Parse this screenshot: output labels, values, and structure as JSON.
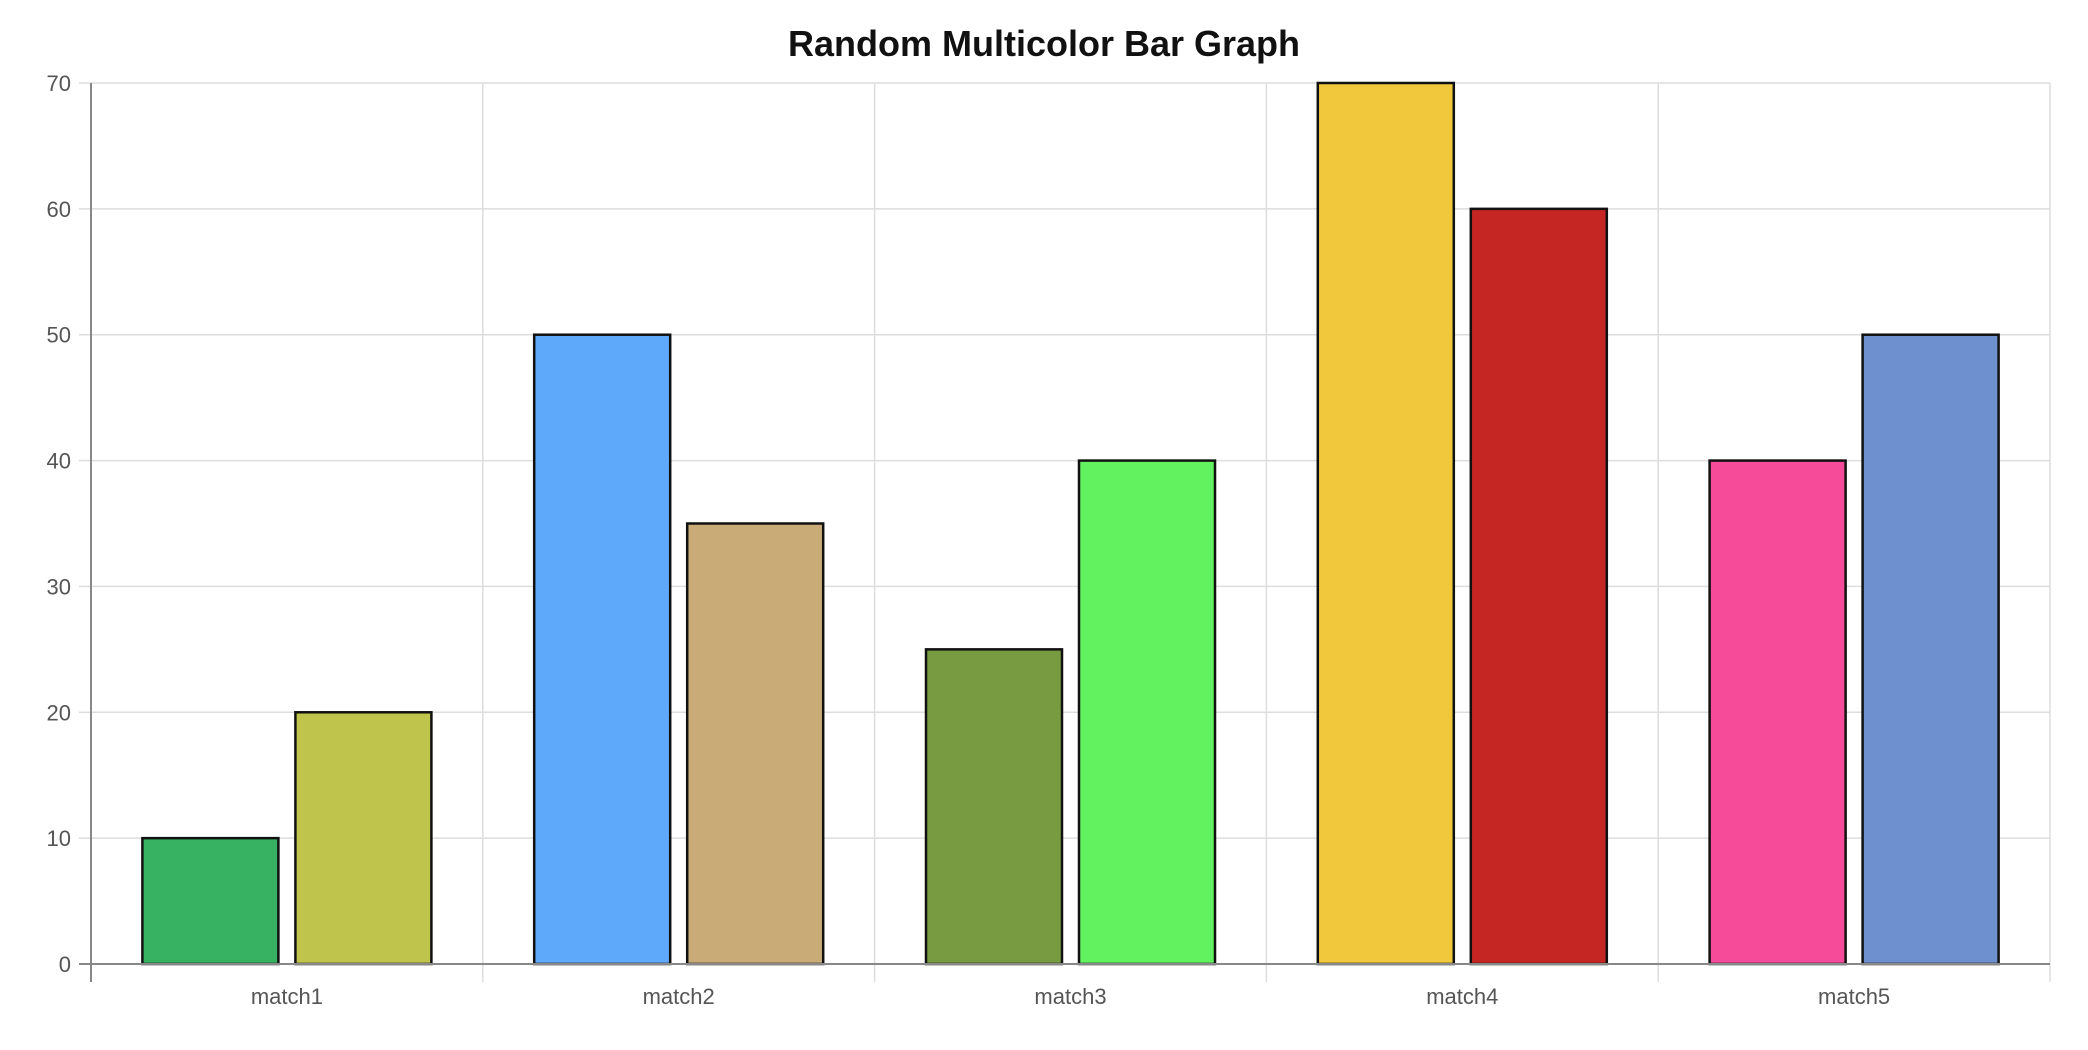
{
  "chart_data": {
    "type": "bar",
    "title": "Random Multicolor Bar Graph",
    "xlabel": "",
    "ylabel": "",
    "categories": [
      "match1",
      "match2",
      "match3",
      "match4",
      "match5"
    ],
    "series": [
      {
        "values": [
          10,
          50,
          25,
          70,
          40
        ],
        "colors": [
          "#36b262",
          "#5fa9fa",
          "#789b42",
          "#f1c83c",
          "#f64b99"
        ]
      },
      {
        "values": [
          20,
          35,
          40,
          60,
          50
        ],
        "colors": [
          "#bfc44c",
          "#c9ab77",
          "#63f25f",
          "#c52623",
          "#6e90cf"
        ]
      }
    ],
    "ylim": [
      0,
      70
    ],
    "yticks": [
      0,
      10,
      20,
      30,
      40,
      50,
      60,
      70
    ],
    "grid": true,
    "legend": "none"
  }
}
